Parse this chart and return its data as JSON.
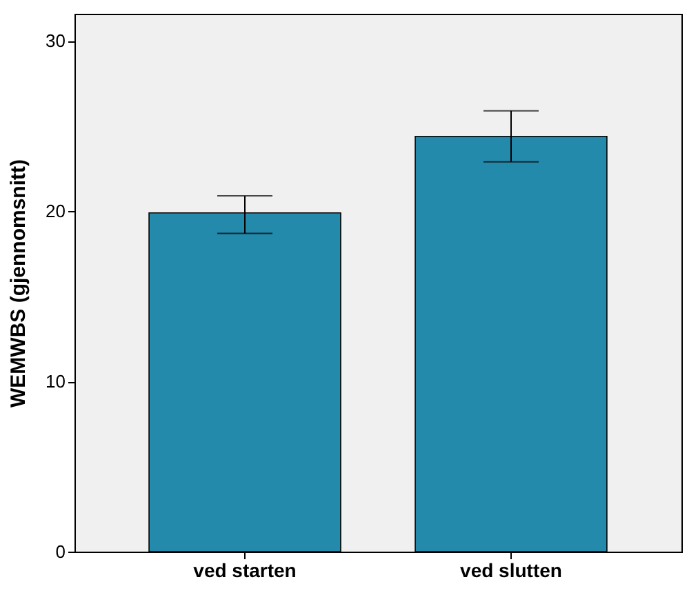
{
  "chart_data": {
    "type": "bar",
    "ylabel": "WEMWBS (gjennomsnitt)",
    "categories": [
      "ved starten",
      "ved slutten"
    ],
    "values": [
      19.9,
      24.4
    ],
    "color": "#248aac",
    "errors": [
      [
        18.7,
        20.9
      ],
      [
        22.9,
        25.9
      ]
    ],
    "ylim": [
      0,
      31.6
    ],
    "yticks": [
      0,
      10,
      20,
      30
    ],
    "grid": false
  }
}
